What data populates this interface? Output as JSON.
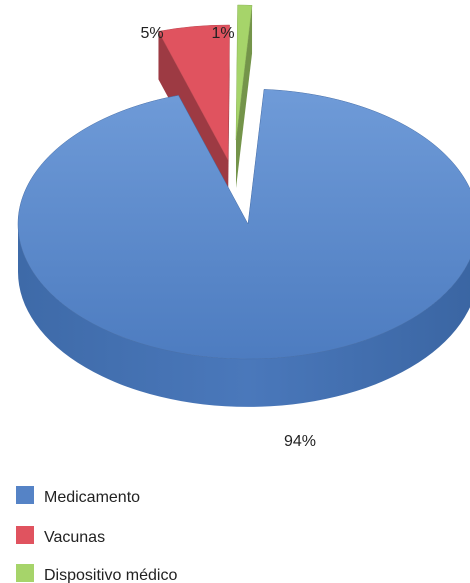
{
  "chart_data": {
    "type": "pie",
    "style": "3d-exploded",
    "slices": [
      {
        "name": "Medicamento",
        "value": 94,
        "label": "94%",
        "color": "#5583c6"
      },
      {
        "name": "Vacunas",
        "value": 5,
        "label": "5%",
        "color": "#e0535f"
      },
      {
        "name": "Dispositivo médico",
        "value": 1,
        "label": "1%",
        "color": "#a6d46a"
      }
    ],
    "legend_position": "bottom-left"
  }
}
